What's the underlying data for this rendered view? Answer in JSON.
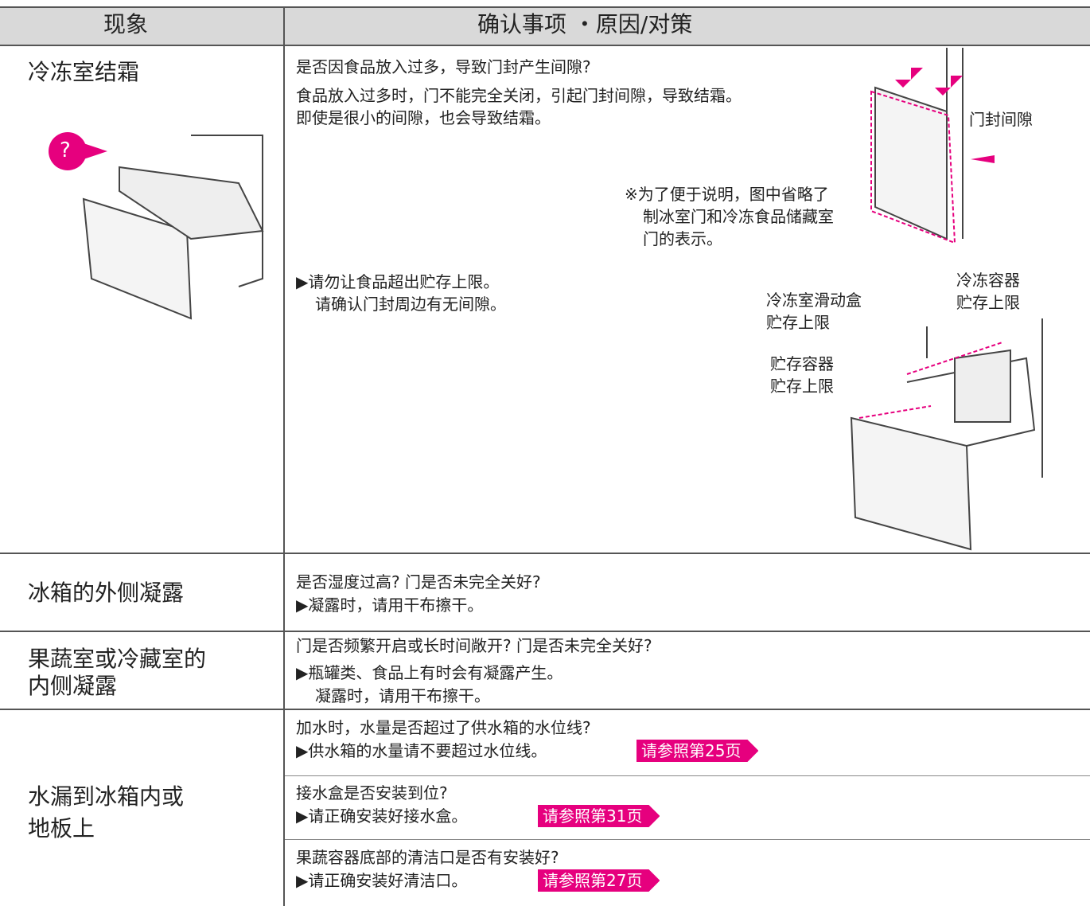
{
  "header": {
    "symptom": "现象",
    "check": "确认事项 ・原因/对策"
  },
  "rows": [
    {
      "symptom": [
        "冷冻室结霜"
      ],
      "question": "是否因食品放入过多，导致门封产生间隙?",
      "explain": [
        "食品放入过多时，门不能完全关闭，引起门封间隙，导致结霜。",
        "即使是很小的间隙，也会导致结霜。"
      ],
      "action": [
        "▶请勿让食品超出贮存上限。",
        "请确认门封周边有无间隙。"
      ],
      "figure": {
        "mark": "?",
        "gap": "门封间隙",
        "note": [
          "※为了便于说明，图中省略了",
          "制冰室门和冷冻食品储藏室",
          "门的表示。"
        ],
        "limits": [
          [
            "冷冻容器",
            "贮存上限"
          ],
          [
            "冷冻室滑动盒",
            "贮存上限"
          ],
          [
            "贮存容器",
            "贮存上限"
          ]
        ]
      }
    },
    {
      "symptom": [
        "冰箱的外侧凝露"
      ],
      "lines": [
        "是否湿度过高? 门是否未完全关好?",
        "▶凝露时，请用干布擦干。"
      ]
    },
    {
      "symptom": [
        "果蔬室或冷藏室的",
        "内侧凝露"
      ],
      "lines": [
        "门是否频繁开启或长时间敞开? 门是否未完全关好?",
        "▶瓶罐类、食品上有时会有凝露产生。",
        "凝露时，请用干布擦干。"
      ]
    },
    {
      "symptom": [
        "水漏到冰箱内或",
        "地板上"
      ],
      "items": [
        {
          "lines": [
            "加水时，水量是否超过了供水箱的水位线?",
            "▶供水箱的水量请不要超过水位线。"
          ],
          "ref": "请参照第25页"
        },
        {
          "lines": [
            "接水盒是否安装到位?",
            "▶请正确安装好接水盒。"
          ],
          "ref": "请参照第31页"
        },
        {
          "lines": [
            "果蔬容器底部的清洁口是否有安装好?",
            "▶请正确安装好清洁口。"
          ],
          "ref": "请参照第27页"
        }
      ]
    }
  ]
}
